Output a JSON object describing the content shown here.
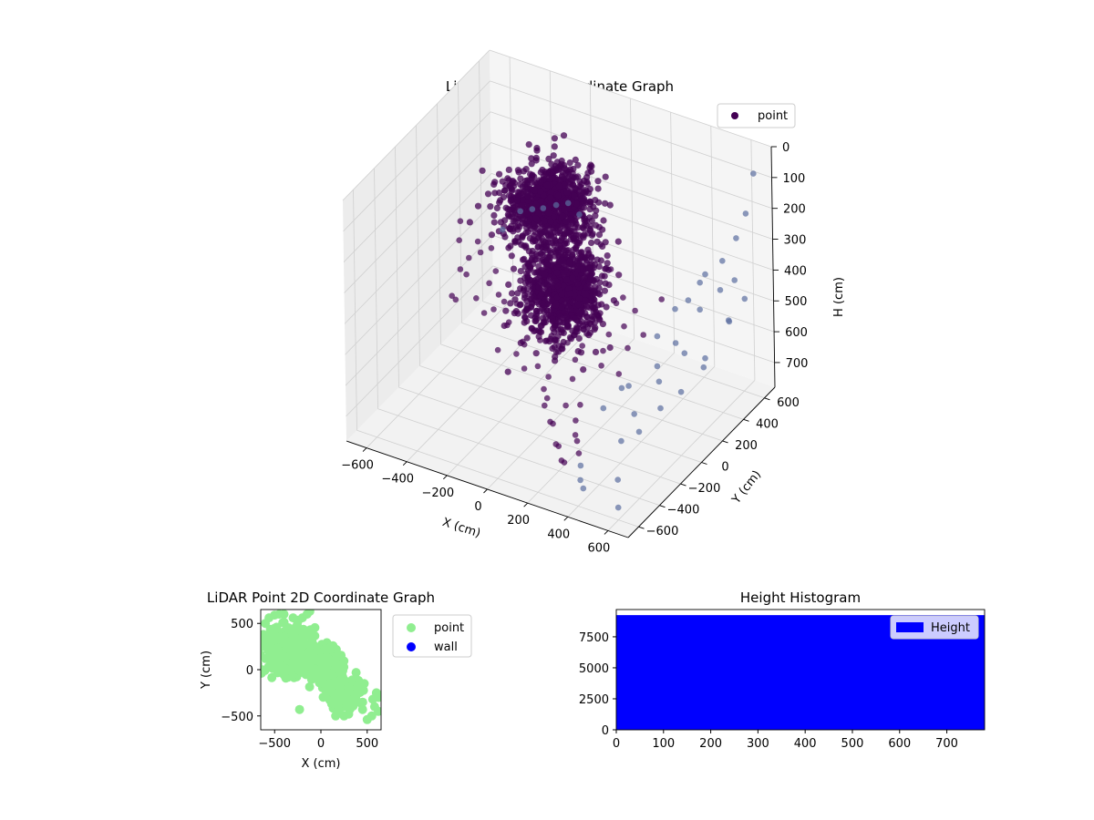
{
  "chart_data": [
    {
      "type": "scatter3d",
      "title": "LiDAR Point 3D Coordinate Graph",
      "xlabel": "X (cm)",
      "ylabel": "Y (cm)",
      "zlabel": "H (cm)",
      "xlim": [
        -700,
        700
      ],
      "ylim": [
        -700,
        700
      ],
      "zlim": [
        0,
        780
      ],
      "z_inverted": true,
      "xticks": [
        -600,
        -400,
        -200,
        0,
        200,
        400,
        600
      ],
      "yticks": [
        -600,
        -400,
        -200,
        0,
        200,
        400,
        600
      ],
      "zticks": [
        0,
        100,
        200,
        300,
        400,
        500,
        600,
        700
      ],
      "legend": {
        "placement": "top-right",
        "entries": [
          {
            "label": "point",
            "color": "#440154"
          }
        ]
      },
      "grid": true,
      "point_color": "#440154",
      "point_color_far": "#5b6ea0",
      "clusters": [
        {
          "name": "",
          "center": [
            -150,
            200,
            200
          ],
          "spread": [
            180,
            220,
            80
          ],
          "count": 950
        },
        {
          "name": "",
          "center": [
            50,
            -50,
            350
          ],
          "spread": [
            170,
            200,
            110
          ],
          "count": 950
        }
      ],
      "scatter_points": [
        [
          -620,
          250,
          380
        ],
        [
          -600,
          200,
          420
        ],
        [
          -560,
          300,
          450
        ],
        [
          -540,
          150,
          500
        ],
        [
          -520,
          350,
          480
        ],
        [
          -500,
          100,
          420
        ],
        [
          -480,
          250,
          550
        ],
        [
          -460,
          300,
          600
        ],
        [
          -440,
          50,
          520
        ],
        [
          -420,
          200,
          480
        ],
        [
          -400,
          350,
          430
        ],
        [
          -380,
          100,
          560
        ],
        [
          -360,
          280,
          600
        ],
        [
          -340,
          150,
          620
        ],
        [
          -320,
          320,
          540
        ],
        [
          -300,
          50,
          500
        ],
        [
          -280,
          200,
          580
        ],
        [
          -260,
          380,
          470
        ],
        [
          -240,
          120,
          650
        ],
        [
          -220,
          260,
          560
        ],
        [
          -200,
          30,
          600
        ],
        [
          -180,
          330,
          520
        ],
        [
          -160,
          180,
          640
        ],
        [
          -140,
          80,
          600
        ],
        [
          -120,
          300,
          680
        ],
        [
          -100,
          -20,
          640
        ],
        [
          -80,
          220,
          560
        ],
        [
          -60,
          140,
          620
        ],
        [
          -40,
          -80,
          680
        ],
        [
          -20,
          260,
          600
        ],
        [
          0,
          -150,
          700
        ],
        [
          20,
          300,
          540
        ],
        [
          40,
          -200,
          650
        ],
        [
          60,
          100,
          580
        ],
        [
          80,
          -250,
          700
        ],
        [
          100,
          350,
          520
        ],
        [
          120,
          -300,
          680
        ],
        [
          140,
          200,
          560
        ],
        [
          160,
          -350,
          720
        ],
        [
          180,
          50,
          600
        ],
        [
          200,
          -400,
          700
        ],
        [
          220,
          300,
          500
        ],
        [
          240,
          -450,
          720
        ],
        [
          260,
          150,
          560
        ],
        [
          280,
          -500,
          700
        ],
        [
          300,
          400,
          480
        ],
        [
          320,
          -200,
          620
        ],
        [
          340,
          450,
          520
        ],
        [
          360,
          -100,
          580
        ],
        [
          380,
          500,
          500
        ],
        [
          400,
          -550,
          740
        ],
        [
          420,
          300,
          560
        ],
        [
          440,
          550,
          420
        ],
        [
          460,
          -300,
          660
        ],
        [
          480,
          420,
          480
        ],
        [
          500,
          600,
          380
        ],
        [
          520,
          -450,
          720
        ],
        [
          540,
          350,
          600
        ],
        [
          560,
          620,
          300
        ],
        [
          580,
          500,
          520
        ],
        [
          600,
          -600,
          740
        ],
        [
          620,
          600,
          200
        ],
        [
          640,
          640,
          80
        ],
        [
          -650,
          300,
          560
        ],
        [
          -630,
          180,
          600
        ],
        [
          -580,
          120,
          580
        ],
        [
          -590,
          380,
          520
        ],
        [
          -500,
          420,
          440
        ],
        [
          -450,
          400,
          380
        ],
        [
          -470,
          180,
          620
        ],
        [
          -410,
          420,
          360
        ],
        [
          -390,
          260,
          660
        ],
        [
          -350,
          420,
          340
        ],
        [
          -330,
          40,
          660
        ],
        [
          -290,
          410,
          320
        ],
        [
          -270,
          100,
          680
        ],
        [
          -230,
          420,
          300
        ],
        [
          -210,
          60,
          700
        ],
        [
          -170,
          420,
          280
        ],
        [
          -150,
          250,
          700
        ],
        [
          -110,
          410,
          300
        ],
        [
          -90,
          60,
          700
        ],
        [
          -50,
          400,
          320
        ],
        [
          -30,
          200,
          680
        ],
        [
          10,
          380,
          360
        ],
        [
          30,
          60,
          680
        ],
        [
          70,
          360,
          420
        ],
        [
          90,
          -120,
          690
        ],
        [
          110,
          200,
          620
        ],
        [
          130,
          -60,
          700
        ],
        [
          150,
          320,
          480
        ],
        [
          170,
          -180,
          700
        ],
        [
          190,
          250,
          540
        ],
        [
          210,
          -260,
          710
        ],
        [
          230,
          120,
          640
        ],
        [
          250,
          -320,
          700
        ],
        [
          270,
          280,
          560
        ],
        [
          290,
          -380,
          710
        ],
        [
          310,
          60,
          640
        ],
        [
          330,
          -440,
          720
        ],
        [
          350,
          260,
          540
        ],
        [
          370,
          -520,
          730
        ],
        [
          390,
          180,
          600
        ],
        [
          410,
          -80,
          660
        ],
        [
          430,
          120,
          620
        ],
        [
          450,
          480,
          420
        ],
        [
          470,
          -150,
          680
        ],
        [
          490,
          250,
          560
        ],
        [
          510,
          -20,
          640
        ],
        [
          530,
          520,
          440
        ],
        [
          550,
          100,
          620
        ],
        [
          570,
          580,
          420
        ],
        [
          590,
          240,
          580
        ],
        [
          610,
          450,
          500
        ],
        [
          630,
          560,
          460
        ]
      ]
    },
    {
      "type": "scatter",
      "title": "LiDAR Point 2D Coordinate Graph",
      "xlabel": "X (cm)",
      "ylabel": "Y (cm)",
      "xlim": [
        -650,
        650
      ],
      "ylim": [
        -650,
        650
      ],
      "xticks": [
        -500,
        0,
        500
      ],
      "yticks": [
        -500,
        0,
        500
      ],
      "legend": {
        "placement": "outside-right",
        "entries": [
          {
            "label": "point",
            "color": "#90ee90"
          },
          {
            "label": "wall",
            "color": "#0000ff"
          }
        ]
      },
      "series": [
        {
          "name": "point",
          "color": "#90ee90"
        },
        {
          "name": "wall",
          "color": "#0000ff"
        }
      ],
      "clusters": [
        {
          "center": [
            -350,
            200
          ],
          "spread": [
            220,
            220
          ],
          "count": 380
        },
        {
          "center": [
            50,
            50
          ],
          "spread": [
            140,
            160
          ],
          "count": 380
        },
        {
          "center": [
            250,
            -250
          ],
          "spread": [
            160,
            130
          ],
          "count": 220
        }
      ],
      "sparse_points": [
        [
          -600,
          500
        ],
        [
          -560,
          560
        ],
        [
          -500,
          590
        ],
        [
          -450,
          600
        ],
        [
          -400,
          600
        ],
        [
          -300,
          560
        ],
        [
          -250,
          520
        ],
        [
          -200,
          560
        ],
        [
          -150,
          600
        ],
        [
          -120,
          630
        ],
        [
          -620,
          380
        ],
        [
          -640,
          300
        ],
        [
          -600,
          120
        ],
        [
          -640,
          0
        ],
        [
          -230,
          -430
        ],
        [
          160,
          -500
        ],
        [
          250,
          -500
        ],
        [
          300,
          -480
        ],
        [
          450,
          -430
        ],
        [
          500,
          -540
        ],
        [
          550,
          -500
        ],
        [
          600,
          -250
        ],
        [
          620,
          -300
        ],
        [
          580,
          -400
        ],
        [
          620,
          -450
        ],
        [
          560,
          -320
        ]
      ]
    },
    {
      "type": "bar",
      "title": "Height Histogram",
      "xlim": [
        0,
        780
      ],
      "ylim": [
        0,
        9700
      ],
      "xticks": [
        0,
        100,
        200,
        300,
        400,
        500,
        600,
        700
      ],
      "yticks": [
        0,
        2500,
        5000,
        7500
      ],
      "legend": {
        "placement": "top-right",
        "entries": [
          {
            "label": "Height",
            "color": "#0000ff"
          }
        ]
      },
      "bar_color": "#0000ff",
      "bins": [
        {
          "x0": 0,
          "x1": 780,
          "value": 9250
        }
      ]
    }
  ]
}
